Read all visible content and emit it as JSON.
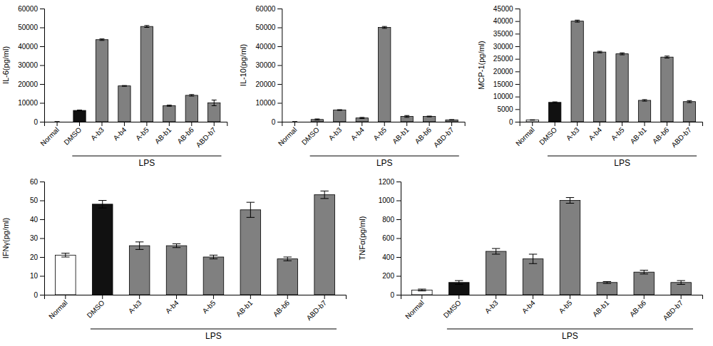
{
  "chart_data": [
    {
      "type": "bar",
      "ylabel": "IL-6(pg/ml)",
      "annotation": "LPS",
      "categories": [
        "Normal",
        "DMSO",
        "A-b3",
        "A-b4",
        "A-b5",
        "AB-b1",
        "AB-b6",
        "ABD-b7"
      ],
      "values": [
        0,
        6000,
        43500,
        19000,
        50500,
        8500,
        14000,
        10000
      ],
      "errors": [
        0,
        200,
        400,
        200,
        500,
        300,
        400,
        1500
      ],
      "colors": [
        "#ffffff",
        "#111111",
        "#808080",
        "#808080",
        "#808080",
        "#808080",
        "#808080",
        "#808080"
      ],
      "ylim": [
        0,
        60000
      ],
      "yticks": [
        0,
        10000,
        20000,
        30000,
        40000,
        50000,
        60000
      ]
    },
    {
      "type": "bar",
      "ylabel": "IL-10(pg/ml)",
      "annotation": "LPS",
      "categories": [
        "Normal",
        "DMSO",
        "A-b3",
        "A-b4",
        "A-b5",
        "AB-b1",
        "AB-b6",
        "ABD-b7"
      ],
      "values": [
        0,
        1200,
        6200,
        2000,
        50000,
        2800,
        2800,
        1000
      ],
      "errors": [
        0,
        300,
        200,
        300,
        500,
        500,
        200,
        150
      ],
      "colors": [
        "#ffffff",
        "#808080",
        "#808080",
        "#808080",
        "#808080",
        "#808080",
        "#808080",
        "#808080"
      ],
      "ylim": [
        0,
        60000
      ],
      "yticks": [
        0,
        10000,
        20000,
        30000,
        40000,
        50000,
        60000
      ]
    },
    {
      "type": "bar",
      "ylabel": "MCP-1(pg/ml)",
      "annotation": "LPS",
      "categories": [
        "Normal",
        "DMSO",
        "A-b3",
        "A-b4",
        "A-b5",
        "AB-b1",
        "AB-b6",
        "ABD-b7"
      ],
      "values": [
        700,
        7700,
        40000,
        27700,
        27000,
        8500,
        25700,
        8000
      ],
      "errors": [
        100,
        200,
        400,
        300,
        400,
        300,
        400,
        400
      ],
      "colors": [
        "#ffffff",
        "#111111",
        "#808080",
        "#808080",
        "#808080",
        "#808080",
        "#808080",
        "#808080"
      ],
      "ylim": [
        0,
        45000
      ],
      "yticks": [
        0,
        5000,
        10000,
        15000,
        20000,
        25000,
        30000,
        35000,
        40000,
        45000
      ]
    },
    {
      "type": "bar",
      "ylabel": "IFNγ(pg/ml)",
      "annotation": "LPS",
      "categories": [
        "Normal",
        "DMSO",
        "A-b3",
        "A-b4",
        "A-b5",
        "AB-b1",
        "AB-b6",
        "ABD-b7"
      ],
      "values": [
        21,
        48,
        26,
        26,
        20,
        45,
        19,
        53
      ],
      "errors": [
        1,
        2,
        2,
        1,
        1,
        4,
        1,
        2
      ],
      "colors": [
        "#ffffff",
        "#111111",
        "#808080",
        "#808080",
        "#808080",
        "#808080",
        "#808080",
        "#808080"
      ],
      "ylim": [
        0,
        60
      ],
      "yticks": [
        0,
        10,
        20,
        30,
        40,
        50,
        60
      ]
    },
    {
      "type": "bar",
      "ylabel": "TNFα(pg/ml)",
      "annotation": "LPS",
      "categories": [
        "Normal",
        "DMSO",
        "A-b3",
        "A-b4",
        "A-b5",
        "AB-b1",
        "AB-b6",
        "ABD-b7"
      ],
      "values": [
        50,
        130,
        460,
        380,
        1000,
        130,
        240,
        130
      ],
      "errors": [
        10,
        20,
        30,
        50,
        30,
        10,
        20,
        20
      ],
      "colors": [
        "#ffffff",
        "#111111",
        "#808080",
        "#808080",
        "#808080",
        "#808080",
        "#808080",
        "#808080"
      ],
      "ylim": [
        0,
        1200
      ],
      "yticks": [
        0,
        200,
        400,
        600,
        800,
        1000,
        1200
      ]
    }
  ]
}
